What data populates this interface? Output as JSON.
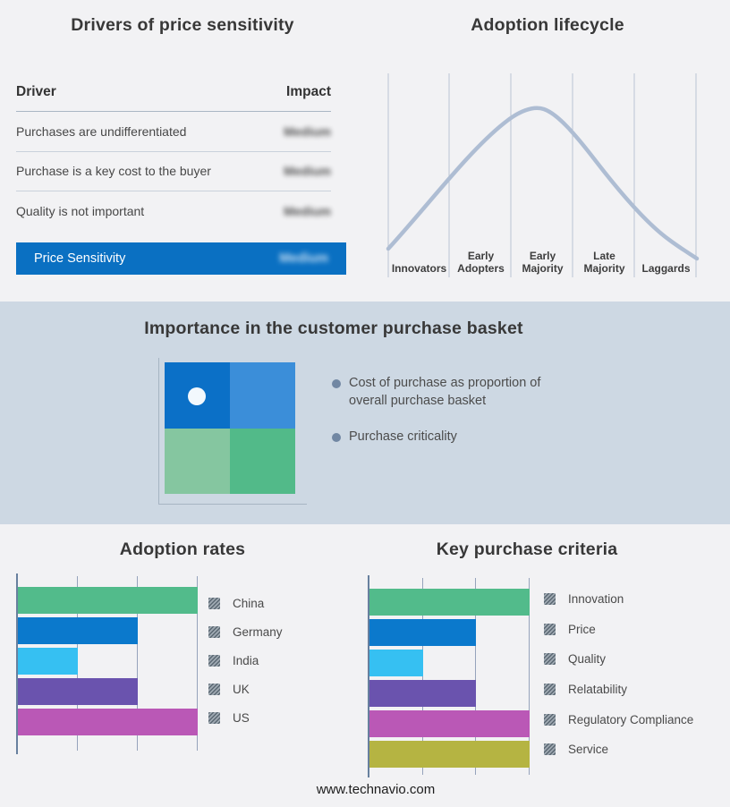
{
  "chart_data": [
    {
      "type": "table",
      "title": "Drivers of price sensitivity",
      "columns": [
        "Driver",
        "Impact"
      ],
      "rows": [
        {
          "driver": "Purchases are undifferentiated",
          "impact": "Medium",
          "impact_redacted": true
        },
        {
          "driver": "Purchase is a key cost to the buyer",
          "impact": "Medium",
          "impact_redacted": true
        },
        {
          "driver": "Quality is not important",
          "impact": "Medium",
          "impact_redacted": true
        }
      ],
      "highlight_row": {
        "driver": "Price Sensitivity",
        "impact": "Medium",
        "impact_redacted": true
      },
      "highlight_color": "#0a70c2"
    },
    {
      "type": "line",
      "subtype": "bell-curve",
      "title": "Adoption lifecycle",
      "stages": [
        "Innovators",
        "Early Adopters",
        "Early Majority",
        "Late Majority",
        "Laggards"
      ],
      "peak_stage": "Early Majority",
      "curve_color": "#aebdd3",
      "gridlines": true
    },
    {
      "type": "bar",
      "title": "Adoption rates",
      "orientation": "horizontal",
      "categories": [
        "China",
        "Germany",
        "India",
        "UK",
        "US"
      ],
      "values": [
        3,
        2,
        1,
        2,
        3
      ],
      "xlim": [
        0,
        3
      ],
      "colors": [
        "#52bb8b",
        "#0b79cc",
        "#36c0f2",
        "#6a53ae",
        "#ba58b6"
      ],
      "gridlines": true,
      "legend_position": "right"
    },
    {
      "type": "bar",
      "title": "Key purchase criteria",
      "orientation": "horizontal",
      "categories": [
        "Innovation",
        "Price",
        "Quality",
        "Relatability",
        "Regulatory Compliance",
        "Service"
      ],
      "values": [
        3,
        2,
        1,
        2,
        3,
        3
      ],
      "xlim": [
        0,
        3
      ],
      "colors": [
        "#52bb8b",
        "#0b79cc",
        "#36c0f2",
        "#6a53ae",
        "#ba58b6",
        "#b5b442"
      ],
      "gridlines": true,
      "legend_position": "right"
    }
  ],
  "basket_panel": {
    "title": "Importance in the customer purchase basket",
    "bullets": [
      "Cost of purchase as proportion of overall purchase basket",
      "Purchase criticality"
    ],
    "band_background": "#cdd8e3",
    "quadrant_colors": {
      "top_left": "#0b70c7",
      "top_right": "#3b8ed9",
      "bottom_left": "#85c6a0",
      "bottom_right": "#52ba89"
    }
  },
  "footer": {
    "url": "www.technavio.com"
  }
}
